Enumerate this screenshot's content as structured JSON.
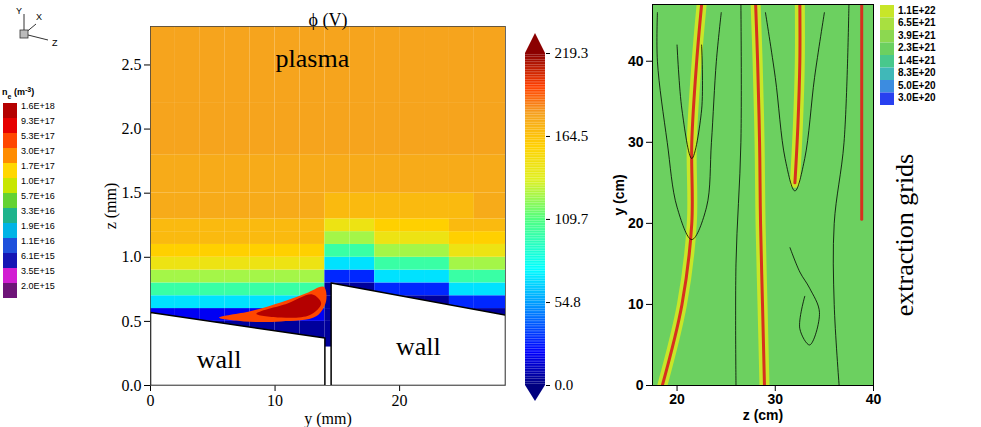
{
  "axis_icon": {
    "labels": [
      "Y",
      "X",
      "Z"
    ]
  },
  "ne_legend": {
    "title": {
      "text": "n",
      "subscript": "e",
      "unit": "(m",
      "superscript": "-3",
      "unit_end": ")"
    },
    "ticks": [
      {
        "value": 1.6e+18,
        "label": "1.6E+18"
      },
      {
        "value": 9.3e+17,
        "label": "9.3E+17"
      },
      {
        "value": 5.3e+17,
        "label": "5.3E+17"
      },
      {
        "value": 3e+17,
        "label": "3.0E+17"
      },
      {
        "value": 1.7e+17,
        "label": "1.7E+17"
      },
      {
        "value": 1e+17,
        "label": "1.0E+17"
      },
      {
        "value": 5.7e+16,
        "label": "5.7E+16"
      },
      {
        "value": 3.3e+16,
        "label": "3.3E+16"
      },
      {
        "value": 1.9e+16,
        "label": "1.9E+16"
      },
      {
        "value": 1.1e+16,
        "label": "1.1E+16"
      },
      {
        "value": 6100000000000000.0,
        "label": "6.1E+15"
      },
      {
        "value": 3500000000000000.0,
        "label": "3.5E+15"
      },
      {
        "value": 2000000000000000.0,
        "label": "2.0E+15"
      }
    ],
    "colors": [
      "#b40000",
      "#e60000",
      "#ff4600",
      "#ff8c00",
      "#ffd700",
      "#c8e600",
      "#64d232",
      "#1eb48c",
      "#00b4e6",
      "#1e50dc",
      "#1414b4",
      "#d21ed2",
      "#6e1478"
    ]
  },
  "chart_data": [
    {
      "type": "heatmap",
      "title": "ϕ (V)",
      "xlabel": "y (mm)",
      "ylabel": "z (mm)",
      "xlim": [
        0,
        28.5
      ],
      "xticks": [
        0,
        10,
        20
      ],
      "ylim": [
        0,
        2.8
      ],
      "yticks": [
        {
          "value": 0,
          "label": "0.0"
        },
        {
          "value": 0.5,
          "label": "0.5"
        },
        {
          "value": 1,
          "label": "1.0"
        },
        {
          "value": 1.5,
          "label": "1.5"
        },
        {
          "value": 2,
          "label": "2.0"
        },
        {
          "value": 2.5,
          "label": "2.5"
        }
      ],
      "cells": {
        "x_edges": [
          0,
          2,
          4,
          6,
          8,
          10,
          12,
          14,
          16,
          18,
          20,
          22,
          24,
          26,
          28.5
        ],
        "y_edges": [
          0,
          0.3,
          0.5,
          0.6,
          0.7,
          0.8,
          0.9,
          1.0,
          1.1,
          1.2,
          1.3,
          1.5,
          1.8,
          2.2,
          2.8
        ],
        "values": [
          [
            null,
            null,
            null,
            null,
            null,
            null,
            null,
            null,
            null,
            null,
            null,
            null,
            null,
            null
          ],
          [
            5,
            5,
            5,
            5,
            5,
            5,
            5,
            5,
            5,
            5,
            5,
            5,
            5,
            5
          ],
          [
            20,
            20,
            20,
            20,
            20,
            20,
            20,
            5,
            5,
            5,
            5,
            5,
            5,
            5
          ],
          [
            70,
            70,
            70,
            70,
            70,
            70,
            70,
            5,
            5,
            5,
            5,
            5,
            30,
            30
          ],
          [
            100,
            100,
            100,
            100,
            100,
            100,
            100,
            5,
            5,
            30,
            30,
            30,
            70,
            70
          ],
          [
            125,
            125,
            125,
            125,
            125,
            125,
            125,
            30,
            30,
            70,
            70,
            70,
            100,
            100
          ],
          [
            145,
            145,
            145,
            145,
            145,
            145,
            145,
            70,
            70,
            100,
            100,
            100,
            125,
            125
          ],
          [
            158,
            158,
            158,
            158,
            158,
            158,
            158,
            100,
            100,
            125,
            125,
            125,
            145,
            145
          ],
          [
            168,
            168,
            168,
            168,
            168,
            168,
            168,
            125,
            125,
            145,
            145,
            145,
            158,
            158
          ],
          [
            168,
            168,
            168,
            168,
            168,
            168,
            168,
            145,
            145,
            158,
            158,
            158,
            168,
            168
          ],
          [
            175,
            175,
            175,
            175,
            175,
            175,
            175,
            168,
            168,
            168,
            168,
            168,
            168,
            175
          ],
          [
            175,
            175,
            175,
            175,
            175,
            175,
            175,
            175,
            175,
            175,
            175,
            175,
            175,
            175
          ],
          [
            178,
            178,
            178,
            178,
            178,
            178,
            178,
            178,
            178,
            178,
            178,
            178,
            178,
            178
          ],
          [
            178,
            178,
            178,
            178,
            178,
            178,
            178,
            178,
            178,
            178,
            178,
            178,
            178,
            178
          ]
        ]
      },
      "colorbar": {
        "range": [
          0,
          219.3
        ],
        "ticks": [
          {
            "value": 0,
            "label": "0.0"
          },
          54.8,
          109.7,
          164.5,
          219.3
        ]
      },
      "ne_regions": [
        {
          "value": 5.3e+17,
          "outline": [
            [
              5.5,
              0.53
            ],
            [
              8,
              0.58
            ],
            [
              10.5,
              0.65
            ],
            [
              12.5,
              0.72
            ],
            [
              13.9,
              0.77
            ],
            [
              14.1,
              0.66
            ],
            [
              13.3,
              0.54
            ],
            [
              10.5,
              0.5
            ],
            [
              7.5,
              0.5
            ]
          ]
        },
        {
          "value": 1.6e+18,
          "outline": [
            [
              8.5,
              0.56
            ],
            [
              11,
              0.64
            ],
            [
              13,
              0.71
            ],
            [
              13.7,
              0.64
            ],
            [
              12.8,
              0.55
            ],
            [
              10.5,
              0.53
            ]
          ]
        }
      ],
      "walls": [
        {
          "label": "wall",
          "label_at": [
            5.5,
            0.2
          ],
          "outline": [
            [
              0,
              0
            ],
            [
              0,
              0.57
            ],
            [
              14,
              0.37
            ],
            [
              14,
              0
            ],
            [
              0,
              0
            ]
          ]
        },
        {
          "label": "wall",
          "label_at": [
            21.5,
            0.3
          ],
          "outline": [
            [
              14.5,
              0
            ],
            [
              14.5,
              0.8
            ],
            [
              28.5,
              0.55
            ],
            [
              28.5,
              0
            ],
            [
              14.5,
              0
            ]
          ]
        }
      ],
      "annotations": [
        {
          "text": "plasma",
          "x": 13,
          "y": 2.55
        }
      ]
    },
    {
      "type": "streamlines",
      "xlabel": "z (cm)",
      "ylabel": "y (cm)",
      "xlim": [
        17.5,
        40
      ],
      "xticks": [
        20,
        30,
        40
      ],
      "ylim": [
        0,
        47
      ],
      "yticks": [
        0,
        10,
        20,
        30,
        40
      ],
      "background": {
        "value": 2.3e+21
      },
      "colorbar": {
        "ticks": [
          {
            "value": 1.1e+22,
            "label": "1.1E+22"
          },
          {
            "value": 6.5e+21,
            "label": "6.5E+21"
          },
          {
            "value": 3.9e+21,
            "label": "3.9E+21"
          },
          {
            "value": 2.3e+21,
            "label": "2.3E+21"
          },
          {
            "value": 1.4e+21,
            "label": "1.4E+21"
          },
          {
            "value": 8.3e+20,
            "label": "8.3E+20"
          },
          {
            "value": 5e+20,
            "label": "5.0E+20"
          },
          {
            "value": 3e+20,
            "label": "3.0E+20"
          }
        ],
        "colors": [
          "#c8e628",
          "#a8e040",
          "#8cd850",
          "#6cd060",
          "#48c88c",
          "#40b8b8",
          "#3c8ce0",
          "#2840f0"
        ]
      },
      "bands": {
        "color": "#d7301f",
        "lines": [
          [
            [
              22.5,
              47
            ],
            [
              22,
              40
            ],
            [
              21.5,
              30
            ],
            [
              21.5,
              20
            ],
            [
              20.5,
              10
            ],
            [
              18.5,
              0
            ]
          ],
          [
            [
              28,
              47
            ],
            [
              28.2,
              40
            ],
            [
              28.4,
              30
            ],
            [
              28.5,
              20
            ],
            [
              28.7,
              10
            ],
            [
              28.9,
              0
            ]
          ],
          [
            [
              32.5,
              47
            ],
            [
              32.5,
              40
            ],
            [
              32.3,
              32
            ],
            [
              32,
              25
            ]
          ]
        ]
      },
      "streamlines": [
        [
          [
            18,
            46
          ],
          [
            18,
            40
          ],
          [
            19,
            30
          ],
          [
            20,
            22
          ],
          [
            21.5,
            18
          ],
          [
            23,
            22
          ],
          [
            23.5,
            30
          ],
          [
            24,
            40
          ],
          [
            24.5,
            46
          ]
        ],
        [
          [
            20,
            42
          ],
          [
            20.5,
            34
          ],
          [
            21.5,
            28
          ],
          [
            22.5,
            34
          ],
          [
            22.5,
            42
          ]
        ],
        [
          [
            29,
            46
          ],
          [
            30,
            38
          ],
          [
            31,
            28
          ],
          [
            32,
            24
          ],
          [
            33,
            28
          ],
          [
            34,
            38
          ],
          [
            35,
            46
          ]
        ],
        [
          [
            26,
            0
          ],
          [
            26,
            15
          ],
          [
            26.5,
            30
          ],
          [
            26.5,
            47
          ]
        ],
        [
          [
            36.5,
            0
          ],
          [
            36,
            10
          ],
          [
            36,
            20
          ],
          [
            37,
            30
          ],
          [
            37.5,
            47
          ]
        ],
        [
          [
            31.5,
            17
          ],
          [
            32.5,
            14
          ],
          [
            33.5,
            12
          ],
          [
            34.5,
            9
          ],
          [
            33.5,
            5
          ],
          [
            32.5,
            7
          ],
          [
            33,
            11
          ]
        ]
      ],
      "grid_line": {
        "z": 38.8,
        "y": [
          20.5,
          47
        ],
        "color": "#d7301f"
      },
      "annotations": [
        {
          "text": "extraction grids"
        }
      ]
    }
  ]
}
